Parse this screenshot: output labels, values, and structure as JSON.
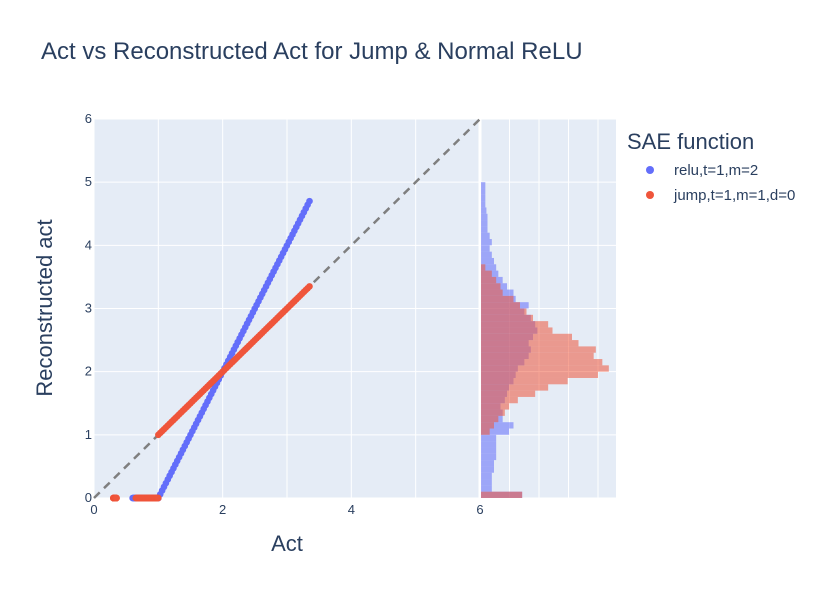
{
  "chart_data": {
    "type": "scatter",
    "title": "Act vs Reconstructed Act for Jump & Normal ReLU",
    "xlabel": "Act",
    "ylabel": "Reconstructed act",
    "xlim": [
      0,
      6
    ],
    "ylim": [
      0,
      6
    ],
    "x_ticks": [
      "0",
      "2",
      "4",
      "6"
    ],
    "y_ticks": [
      "0",
      "1",
      "2",
      "3",
      "4",
      "5",
      "6"
    ],
    "grid": true,
    "legend": {
      "title": "SAE function",
      "position": "top-right"
    },
    "reference_line": {
      "style": "dashed",
      "color": "#7f7f7f",
      "points": [
        [
          0,
          0
        ],
        [
          6,
          6
        ]
      ]
    },
    "series": [
      {
        "name": "relu,t=1,m=2",
        "color": "#636efa",
        "segments": [
          {
            "x": [
              0.6,
              1.0
            ],
            "y": [
              0,
              0
            ]
          },
          {
            "x": [
              1.0,
              3.35
            ],
            "y": [
              0,
              4.7
            ]
          }
        ],
        "histogram": {
          "bin_size": 0.1,
          "bins_start": 0.0,
          "counts": [
            38,
            10,
            10,
            10,
            12,
            12,
            14,
            14,
            14,
            14,
            26,
            30,
            20,
            20,
            18,
            22,
            24,
            26,
            30,
            32,
            34,
            40,
            44,
            46,
            44,
            48,
            52,
            50,
            46,
            40,
            44,
            32,
            30,
            24,
            20,
            16,
            14,
            12,
            10,
            8,
            10,
            8,
            6,
            6,
            6,
            5,
            4,
            4,
            4,
            4
          ]
        }
      },
      {
        "name": "jump,t=1,m=1,d=0",
        "color": "#ef553b",
        "segments": [
          {
            "x": [
              0.3,
              0.35
            ],
            "y": [
              0,
              0
            ]
          },
          {
            "x": [
              0.65,
              1.0
            ],
            "y": [
              0,
              0
            ]
          },
          {
            "x": [
              1.0,
              3.35
            ],
            "y": [
              1.0,
              3.35
            ]
          }
        ],
        "histogram": {
          "bin_size": 0.1,
          "bins_start": 0.0,
          "counts": [
            38,
            0,
            0,
            0,
            0,
            0,
            0,
            0,
            0,
            0,
            8,
            12,
            16,
            22,
            26,
            34,
            50,
            62,
            80,
            108,
            118,
            112,
            104,
            106,
            90,
            84,
            66,
            62,
            48,
            42,
            36,
            30,
            20,
            18,
            14,
            10,
            4,
            0,
            0,
            0,
            0,
            0,
            0,
            0,
            0,
            0,
            0,
            0,
            0,
            0
          ]
        }
      }
    ]
  }
}
